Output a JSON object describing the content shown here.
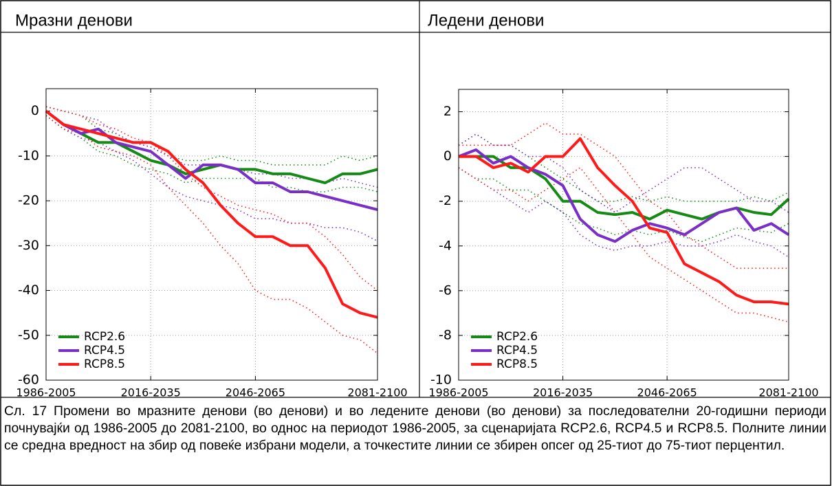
{
  "chart_data": [
    {
      "type": "line",
      "title": "Мразни денови",
      "x": [
        1986,
        1991,
        1996,
        2001,
        2006,
        2011,
        2016,
        2021,
        2026,
        2031,
        2036,
        2041,
        2046,
        2051,
        2056,
        2061,
        2066,
        2071,
        2076,
        2081
      ],
      "xlim": [
        1986,
        2081
      ],
      "xticks": [
        {
          "value": 1986,
          "label": "1986-2005"
        },
        {
          "value": 2016,
          "label": "2016-2035"
        },
        {
          "value": 2046,
          "label": "2046-2065"
        },
        {
          "value": 2081,
          "label": "2081-2100"
        }
      ],
      "ylim": [
        -60,
        5
      ],
      "yticks": [
        -60,
        -50,
        -40,
        -30,
        -20,
        -10,
        0
      ],
      "grid": true,
      "legend": "lower left",
      "series": [
        {
          "name": "RCP2.6",
          "color": "#158a15",
          "values": [
            0,
            -3,
            -5,
            -7,
            -7,
            -9,
            -11,
            -12,
            -14,
            -13,
            -12,
            -13,
            -13,
            -14,
            -14,
            -15,
            -16,
            -14,
            -14,
            -13
          ],
          "p75": [
            1,
            0,
            -1,
            -4,
            -5,
            -7,
            -8,
            -10,
            -11,
            -11,
            -10,
            -11,
            -11,
            -12,
            -12,
            -12,
            -12,
            -10,
            -11,
            -10
          ],
          "p25": [
            -1,
            -4,
            -6,
            -9,
            -10,
            -12,
            -13,
            -14,
            -16,
            -15,
            -15,
            -15,
            -15,
            -17,
            -17,
            -18,
            -18,
            -17,
            -17,
            -18
          ]
        },
        {
          "name": "RCP4.5",
          "color": "#7a2ec8",
          "values": [
            0,
            -3,
            -5,
            -4,
            -7,
            -8,
            -9,
            -12,
            -15,
            -12,
            -12,
            -13,
            -16,
            -16,
            -18,
            -18,
            -19,
            -20,
            -21,
            -22
          ],
          "p75": [
            1,
            0,
            -1,
            -2,
            -5,
            -7,
            -8,
            -10,
            -12,
            -12,
            -12,
            -13,
            -14,
            -14,
            -15,
            -15,
            -16,
            -15,
            -16,
            -17
          ],
          "p25": [
            -1,
            -4,
            -6,
            -7,
            -9,
            -11,
            -14,
            -17,
            -19,
            -20,
            -21,
            -22,
            -24,
            -24,
            -25,
            -25,
            -26,
            -26,
            -27,
            -29
          ]
        },
        {
          "name": "RCP8.5",
          "color": "#ff1a1a",
          "values": [
            0,
            -3,
            -4,
            -5,
            -6,
            -7,
            -7,
            -9,
            -13,
            -16,
            -21,
            -25,
            -28,
            -28,
            -30,
            -30,
            -35,
            -43,
            -45,
            -46
          ],
          "p75": [
            1,
            0,
            -1,
            -3,
            -4,
            -6,
            -7,
            -10,
            -14,
            -17,
            -19,
            -21,
            -22,
            -23,
            -25,
            -25,
            -28,
            -32,
            -37,
            -40
          ],
          "p25": [
            -1,
            -4,
            -5,
            -8,
            -9,
            -10,
            -12,
            -17,
            -21,
            -25,
            -30,
            -34,
            -40,
            -42,
            -42,
            -44,
            -47,
            -50,
            -51,
            -54
          ]
        }
      ]
    },
    {
      "type": "line",
      "title": "Ледени денови",
      "x": [
        1986,
        1991,
        1996,
        2001,
        2006,
        2011,
        2016,
        2021,
        2026,
        2031,
        2036,
        2041,
        2046,
        2051,
        2056,
        2061,
        2066,
        2071,
        2076,
        2081
      ],
      "xlim": [
        1986,
        2081
      ],
      "xticks": [
        {
          "value": 1986,
          "label": "1986-2005"
        },
        {
          "value": 2016,
          "label": "2016-2035"
        },
        {
          "value": 2046,
          "label": "2046-2065"
        },
        {
          "value": 2081,
          "label": "2081-2100"
        }
      ],
      "ylim": [
        -10,
        3
      ],
      "yticks": [
        -10,
        -8,
        -6,
        -4,
        -2,
        0,
        2
      ],
      "grid": true,
      "legend": "lower left",
      "series": [
        {
          "name": "RCP2.6",
          "color": "#158a15",
          "values": [
            0,
            0,
            0,
            -0.5,
            -0.5,
            -1,
            -2,
            -2,
            -2.5,
            -2.6,
            -2.5,
            -2.8,
            -2.4,
            -2.6,
            -2.8,
            -2.5,
            -2.3,
            -2.5,
            -2.6,
            -1.9
          ],
          "p75": [
            0.5,
            1,
            0.5,
            0.5,
            0,
            -0.5,
            -1,
            -1.5,
            -2,
            -2,
            -1.8,
            -2,
            -1.8,
            -2,
            -2,
            -2,
            -2,
            -1.8,
            -2,
            -1.6
          ],
          "p25": [
            -0.5,
            -1,
            -1,
            -1.5,
            -1.5,
            -2,
            -2.5,
            -3,
            -3.2,
            -3.5,
            -3.3,
            -3.5,
            -3.3,
            -3.6,
            -3.8,
            -3.5,
            -3.2,
            -3.3,
            -3.4,
            -3
          ]
        },
        {
          "name": "RCP4.5",
          "color": "#7a2ec8",
          "values": [
            0,
            0.3,
            -0.3,
            0,
            -0.5,
            -0.8,
            -1.3,
            -2.8,
            -3.5,
            -3.8,
            -3.3,
            -3,
            -3.2,
            -3.5,
            -3,
            -2.5,
            -2.3,
            -3.3,
            -3,
            -3.5
          ],
          "p75": [
            0.5,
            1,
            0.5,
            0.5,
            0,
            0,
            -0.5,
            -1.5,
            -2,
            -2.5,
            -2,
            -1.5,
            -1,
            -0.5,
            -0.5,
            -1,
            -1.5,
            -2,
            -2,
            -2.5
          ],
          "p25": [
            -0.5,
            -1,
            -1.5,
            -2,
            -2.5,
            -2,
            -2.5,
            -3.5,
            -4,
            -4.2,
            -4,
            -4,
            -3.8,
            -4,
            -4,
            -3.8,
            -3.5,
            -3.8,
            -4,
            -4.5
          ]
        },
        {
          "name": "RCP8.5",
          "color": "#ff1a1a",
          "values": [
            0,
            0,
            -0.5,
            -0.3,
            -0.7,
            0,
            0,
            0.8,
            -0.5,
            -1.3,
            -2,
            -3.2,
            -3.4,
            -4.8,
            -5.2,
            -5.6,
            -6.2,
            -6.5,
            -6.5,
            -6.6
          ],
          "p75": [
            0.5,
            0.5,
            0.5,
            0.5,
            1,
            1.5,
            1,
            1,
            0.5,
            0,
            -1,
            -2,
            -2.5,
            -3.5,
            -4,
            -4.5,
            -5,
            -5,
            -5,
            -5
          ],
          "p25": [
            -0.5,
            -1,
            -1.5,
            -1.5,
            -2,
            -1.5,
            -1,
            -0.5,
            -1.5,
            -2.5,
            -3.5,
            -4.5,
            -5,
            -5.5,
            -6,
            -6.5,
            -7,
            -7,
            -7.2,
            -7.4
          ]
        }
      ]
    }
  ],
  "caption": "Сл. 17 Промени во мразните денови (во денови) и во ледените денови (во денови) за последователни 20-годишни периоди почнувајќи од 1986-2005 до 2081-2100, во однос на периодот 1986-2005, за сценаријата RCP2.6, RCP4.5 и RCP8.5. Полните линии се средна вредност на збир од повеќе избрани модели, а точкестите линии се збирен опсег од 25-тиот до 75-тиот перцентил."
}
